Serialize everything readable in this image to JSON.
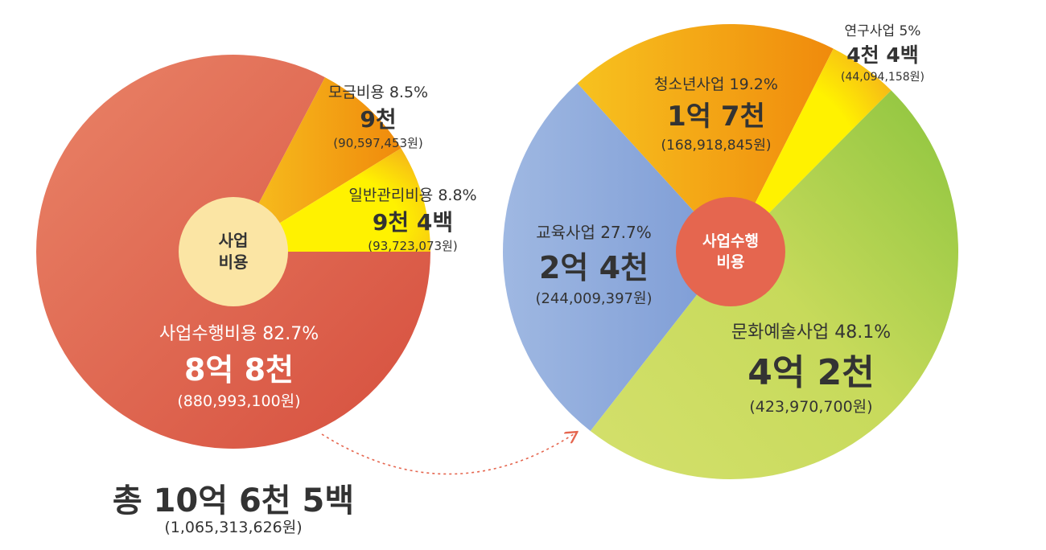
{
  "chart_data": [
    {
      "type": "pie",
      "center_label": [
        "사업",
        "비용"
      ],
      "slices": [
        {
          "name": "사업수행비용",
          "percent": 82.7,
          "amount_label": "8억 8천",
          "value": 880993100,
          "value_label": "(880,993,100원)",
          "percent_label": "사업수행비용 82.7%",
          "color": "#e27458"
        },
        {
          "name": "모금비용",
          "percent": 8.5,
          "amount_label": "9천",
          "value": 90597453,
          "value_label": "(90,597,453원)",
          "percent_label": "모금비용 8.5%",
          "color": "#f5b21a"
        },
        {
          "name": "일반관리비용",
          "percent": 8.8,
          "amount_label": "9천 4백",
          "value": 93723073,
          "value_label": "(93,723,073원)",
          "percent_label": "일반관리비용 8.8%",
          "color": "#fff200"
        }
      ]
    },
    {
      "type": "pie",
      "center_label": [
        "사업수행",
        "비용"
      ],
      "slices": [
        {
          "name": "문화예술사업",
          "percent": 48.1,
          "amount_label": "4억 2천",
          "value": 423970700,
          "value_label": "(423,970,700원)",
          "percent_label": "문화예술사업 48.1%",
          "color": "#c8d95a"
        },
        {
          "name": "교육사업",
          "percent": 27.7,
          "amount_label": "2억 4천",
          "value": 244009397,
          "value_label": "(244,009,397원)",
          "percent_label": "교육사업 27.7%",
          "color": "#8eaadb"
        },
        {
          "name": "청소년사업",
          "percent": 19.2,
          "amount_label": "1억 7천",
          "value": 168918845,
          "value_label": "(168,918,845원)",
          "percent_label": "청소년사업 19.2%",
          "color": "#f5a914"
        },
        {
          "name": "연구사업",
          "percent": 5,
          "amount_label": "4천 4백",
          "value": 44094158,
          "value_label": "(44,094,158원)",
          "percent_label": "연구사업 5%",
          "color": "#fff200"
        }
      ]
    }
  ],
  "total": {
    "label": "총 10억 6천 5백",
    "value_label": "(1,065,313,626원)",
    "value": 1065313626
  },
  "colors": {
    "center_left": "#fbe5a4",
    "center_right": "#e5664f",
    "arrow": "#e5664f",
    "text": "#333333"
  }
}
